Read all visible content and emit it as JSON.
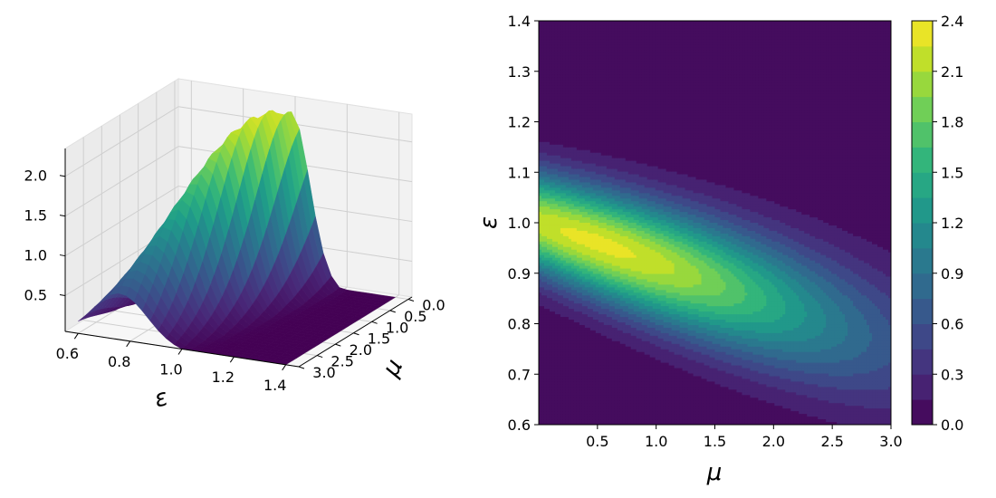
{
  "chart_data": [
    {
      "type": "surface3d",
      "xlabel": "ε",
      "ylabel": "μ",
      "xlim": [
        0.55,
        1.45
      ],
      "ylim": [
        -0.1,
        3.0
      ],
      "zlim": [
        0.05,
        2.35
      ],
      "x_ticks": [
        "0.6",
        "0.8",
        "1.0",
        "1.2",
        "1.4"
      ],
      "y_ticks": [
        "0.0",
        "0.5",
        "1.0",
        "1.5",
        "2.0",
        "2.5",
        "3.0"
      ],
      "z_ticks": [
        "0.5",
        "1.0",
        "1.5",
        "2.0"
      ],
      "colormap": "viridis",
      "peak": {
        "epsilon": 1.0,
        "mu": 0.5,
        "value": 2.3
      },
      "grid": true
    },
    {
      "type": "contour",
      "xlabel": "μ",
      "ylabel": "ε",
      "xlim": [
        0.0,
        3.0
      ],
      "ylim": [
        0.6,
        1.4
      ],
      "x_ticks": [
        "0.5",
        "1.0",
        "1.5",
        "2.0",
        "2.5",
        "3.0"
      ],
      "y_ticks": [
        "0.6",
        "0.7",
        "0.8",
        "0.9",
        "1.0",
        "1.1",
        "1.2",
        "1.3",
        "1.4"
      ],
      "colorbar_ticks": [
        "0.0",
        "0.3",
        "0.6",
        "0.9",
        "1.2",
        "1.5",
        "1.8",
        "2.1",
        "2.4"
      ],
      "levels": [
        0.0,
        0.15,
        0.3,
        0.45,
        0.6,
        0.75,
        0.9,
        1.05,
        1.2,
        1.35,
        1.5,
        1.65,
        1.8,
        1.95,
        2.1,
        2.25,
        2.4
      ],
      "colormap": "viridis",
      "peak": {
        "mu": 0.5,
        "epsilon": 1.0,
        "value": 2.3
      },
      "grid": false
    }
  ]
}
